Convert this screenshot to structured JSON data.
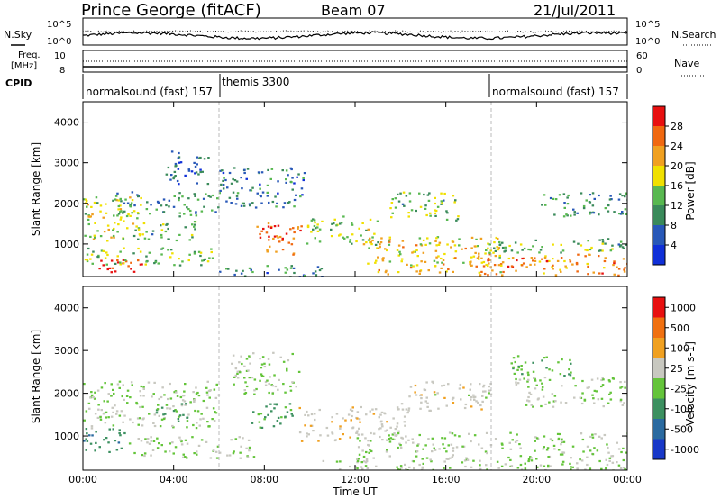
{
  "header": {
    "station": "Prince George (fitACF)",
    "beam": "Beam 07",
    "date": "21/Jul/2011"
  },
  "top_panel": {
    "left_label": "N.Sky",
    "right_label": "N.Search",
    "left_ticks": [
      "10^5",
      "10^0"
    ],
    "right_ticks": [
      "10^5",
      "10^0"
    ]
  },
  "freq_panel": {
    "left_label_1": "Freq.",
    "left_label_2": "[MHz]",
    "left_ticks": [
      "10",
      "8"
    ],
    "right_label": "Nave",
    "right_ticks": [
      "60",
      "0"
    ]
  },
  "cpid": {
    "label": "CPID",
    "segments": [
      {
        "text": "normalsound (fast) 157",
        "start_hour": 0
      },
      {
        "text": "themis 3300",
        "start_hour": 6
      },
      {
        "text": "normalsound (fast) 157",
        "start_hour": 18
      }
    ]
  },
  "axes": {
    "xlabel": "Time UT",
    "xticks": [
      "00:00",
      "04:00",
      "08:00",
      "12:00",
      "16:00",
      "20:00",
      "00:00"
    ],
    "ylabel": "Slant Range [km]",
    "yticks": [
      "1000",
      "2000",
      "3000",
      "4000"
    ]
  },
  "power_colorbar": {
    "label": "Power [dB]",
    "ticks": [
      "4",
      "8",
      "12",
      "16",
      "20",
      "24",
      "28"
    ],
    "colors": [
      "#1030d8",
      "#2858b8",
      "#3a8a5a",
      "#58b850",
      "#f0e000",
      "#f0a020",
      "#f06810",
      "#e81010"
    ]
  },
  "velocity_colorbar": {
    "label": "Velocity [m s-1]",
    "ticks": [
      "1000",
      "500",
      "100",
      "25",
      "-25",
      "-100",
      "-500",
      "-1000"
    ],
    "colors": [
      "#1838c8",
      "#2a6aa0",
      "#3c9060",
      "#64c43a",
      "#c8c8c0",
      "#f0a020",
      "#f07010",
      "#e81010"
    ]
  },
  "chart_data": {
    "type": "heatmap",
    "x_unit": "hours UT",
    "xlim": [
      0,
      24
    ],
    "ylim": [
      200,
      4500
    ],
    "panels": [
      {
        "name": "Power",
        "scale": [
          0,
          30
        ],
        "blobs": [
          {
            "x0": 0.2,
            "x1": 2.6,
            "y0": 300,
            "y1": 650,
            "value": 28
          },
          {
            "x0": 0.0,
            "x1": 5.8,
            "y0": 500,
            "y1": 950,
            "value": 14
          },
          {
            "x0": 0.0,
            "x1": 2.6,
            "y0": 1100,
            "y1": 2200,
            "value": 16
          },
          {
            "x0": 2.2,
            "x1": 5.0,
            "y0": 1100,
            "y1": 1600,
            "value": 12
          },
          {
            "x0": 1.2,
            "x1": 6.0,
            "y0": 1700,
            "y1": 2300,
            "value": 10
          },
          {
            "x0": 3.5,
            "x1": 5.5,
            "y0": 2500,
            "y1": 3300,
            "value": 6
          },
          {
            "x0": 6.0,
            "x1": 9.8,
            "y0": 1900,
            "y1": 2900,
            "value": 8
          },
          {
            "x0": 7.6,
            "x1": 9.6,
            "y0": 750,
            "y1": 1550,
            "value": 24
          },
          {
            "x0": 9.8,
            "x1": 13.0,
            "y0": 1000,
            "y1": 1700,
            "value": 14
          },
          {
            "x0": 6.0,
            "x1": 10.5,
            "y0": 200,
            "y1": 500,
            "value": 8
          },
          {
            "x0": 12.5,
            "x1": 18.5,
            "y0": 250,
            "y1": 1200,
            "value": 18
          },
          {
            "x0": 13.5,
            "x1": 16.5,
            "y0": 1600,
            "y1": 2300,
            "value": 12
          },
          {
            "x0": 17.0,
            "x1": 24.0,
            "y0": 250,
            "y1": 800,
            "value": 22
          },
          {
            "x0": 17.5,
            "x1": 24.0,
            "y0": 800,
            "y1": 1150,
            "value": 12
          },
          {
            "x0": 20.0,
            "x1": 24.0,
            "y0": 1700,
            "y1": 2300,
            "value": 10
          }
        ]
      },
      {
        "name": "Velocity",
        "scale": [
          -1000,
          1000
        ],
        "blobs": [
          {
            "x0": 0.0,
            "x1": 1.8,
            "y0": 600,
            "y1": 1200,
            "value": -400
          },
          {
            "x0": 0.0,
            "x1": 6.0,
            "y0": 1200,
            "y1": 2300,
            "value": 0
          },
          {
            "x0": 3.2,
            "x1": 4.6,
            "y0": 1300,
            "y1": 1800,
            "value": -300
          },
          {
            "x0": 2.0,
            "x1": 7.5,
            "y0": 500,
            "y1": 1000,
            "value": 0
          },
          {
            "x0": 6.5,
            "x1": 9.5,
            "y0": 2000,
            "y1": 3000,
            "value": 0
          },
          {
            "x0": 7.2,
            "x1": 9.2,
            "y0": 1200,
            "y1": 1800,
            "value": -300
          },
          {
            "x0": 9.5,
            "x1": 14.5,
            "y0": 900,
            "y1": 1700,
            "value": 150
          },
          {
            "x0": 10.5,
            "x1": 12.5,
            "y0": 200,
            "y1": 450,
            "value": 60
          },
          {
            "x0": 12.0,
            "x1": 24.0,
            "y0": 200,
            "y1": 1100,
            "value": 0
          },
          {
            "x0": 14.0,
            "x1": 18.0,
            "y0": 1600,
            "y1": 2300,
            "value": 120
          },
          {
            "x0": 19.0,
            "x1": 24.0,
            "y0": 1700,
            "y1": 2400,
            "value": 0
          },
          {
            "x0": 18.8,
            "x1": 21.5,
            "y0": 2400,
            "y1": 2900,
            "value": -200
          }
        ]
      }
    ],
    "mode_boundaries_hours": [
      6,
      18
    ]
  }
}
